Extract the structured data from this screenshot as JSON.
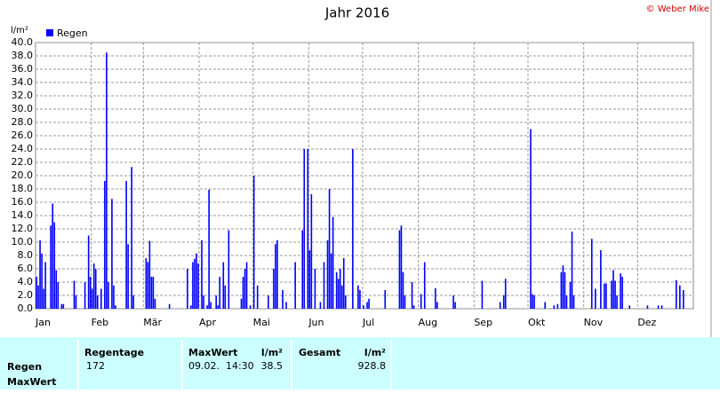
{
  "chart_data": {
    "type": "bar",
    "title": "Jahr 2016",
    "credit": "© Weber Mike",
    "y_unit": "l/m²",
    "categories": [
      "Jan",
      null,
      null,
      null,
      null,
      null,
      null,
      null,
      null,
      null,
      null,
      null,
      null,
      null,
      null,
      null,
      null,
      null,
      null,
      null,
      null,
      null,
      null,
      null,
      null,
      null,
      null,
      null,
      null,
      null,
      null,
      "Feb",
      null,
      null,
      null,
      null,
      null,
      null,
      null,
      null,
      null,
      null,
      null,
      null,
      null,
      null,
      null,
      null,
      null,
      null,
      null,
      null,
      null,
      null,
      null,
      null,
      null,
      null,
      null,
      null,
      "Mär",
      null,
      null,
      null,
      null,
      null,
      null,
      null,
      null,
      null,
      null,
      null,
      null,
      null,
      null,
      null,
      null,
      null,
      null,
      null,
      null,
      null,
      null,
      null,
      null,
      null,
      null,
      null,
      null,
      null,
      null,
      "Apr",
      null,
      null,
      null,
      null,
      null,
      null,
      null,
      null,
      null,
      null,
      null,
      null,
      null,
      null,
      null,
      null,
      null,
      null,
      null,
      null,
      null,
      null,
      null,
      null,
      null,
      null,
      null,
      null,
      null,
      "Mai",
      null,
      null,
      null,
      null,
      null,
      null,
      null,
      null,
      null,
      null,
      null,
      null,
      null,
      null,
      null,
      null,
      null,
      null,
      null,
      null,
      null,
      null,
      null,
      null,
      null,
      null,
      null,
      null,
      null,
      null,
      "Jun",
      null,
      null,
      null,
      null,
      null,
      null,
      null,
      null,
      null,
      null,
      null,
      null,
      null,
      null,
      null,
      null,
      null,
      null,
      null,
      null,
      null,
      null,
      null,
      null,
      null,
      null,
      null,
      null,
      null,
      "Jul",
      null,
      null,
      null,
      null,
      null,
      null,
      null,
      null,
      null,
      null,
      null,
      null,
      null,
      null,
      null,
      null,
      null,
      null,
      null,
      null,
      null,
      null,
      null,
      null,
      null,
      null,
      null,
      null,
      null,
      null,
      "Aug",
      null,
      null,
      null,
      null,
      null,
      null,
      null,
      null,
      null,
      null,
      null,
      null,
      null,
      null,
      null,
      null,
      null,
      null,
      null,
      null,
      null,
      null,
      null,
      null,
      null,
      null,
      null,
      null,
      null,
      null,
      "Sep",
      null,
      null,
      null,
      null,
      null,
      null,
      null,
      null,
      null,
      null,
      null,
      null,
      null,
      null,
      null,
      null,
      null,
      null,
      null,
      null,
      null,
      null,
      null,
      null,
      null,
      null,
      null,
      null,
      null,
      "Okt",
      null,
      null,
      null,
      null,
      null,
      null,
      null,
      null,
      null,
      null,
      null,
      null,
      null,
      null,
      null,
      null,
      null,
      null,
      null,
      null,
      null,
      null,
      null,
      null,
      null,
      null,
      null,
      null,
      null,
      null,
      "Nov",
      null,
      null,
      null,
      null,
      null,
      null,
      null,
      null,
      null,
      null,
      null,
      null,
      null,
      null,
      null,
      null,
      null,
      null,
      null,
      null,
      null,
      null,
      null,
      null,
      null,
      null,
      null,
      null,
      null,
      "Dez",
      null,
      null,
      null,
      null,
      null,
      null,
      null,
      null,
      null,
      null,
      null,
      null,
      null,
      null,
      null,
      null,
      null,
      null,
      null,
      null,
      null,
      null,
      null,
      null,
      null,
      null,
      null,
      null,
      null,
      null
    ],
    "series": [
      {
        "name": "Regen",
        "color": "#0000ff",
        "values": [
          4.8,
          3.5,
          10.3,
          8.3,
          3.0,
          7.0,
          0,
          0,
          12.5,
          15.8,
          13,
          5.8,
          4,
          0,
          0.7,
          0.7,
          0,
          0,
          0,
          0,
          0,
          4.2,
          2,
          0,
          0,
          0,
          0,
          4,
          0,
          11,
          4.8,
          3,
          6.8,
          6,
          2,
          0,
          3,
          0,
          19.2,
          38.5,
          4,
          0,
          16.5,
          3.5,
          0.5,
          0,
          0,
          0,
          0,
          0,
          19.2,
          9.7,
          0,
          21.3,
          2,
          0,
          0,
          0,
          0,
          0,
          0,
          7.6,
          7,
          10.2,
          4.8,
          4.8,
          1.5,
          0,
          0,
          0,
          0,
          0,
          0,
          0,
          0.7,
          0,
          0,
          0,
          0,
          0,
          0,
          0,
          0,
          0,
          6,
          0,
          0.5,
          7,
          7.5,
          8.3,
          6.8,
          0,
          10.3,
          2,
          0,
          0.5,
          17.9,
          1,
          0,
          0,
          2,
          0.5,
          4.8,
          0,
          7,
          3.5,
          0,
          11.8,
          0,
          0,
          0,
          0,
          0,
          0,
          1.5,
          4.8,
          6,
          7,
          0,
          0.5,
          0,
          20,
          0,
          3.5,
          0,
          0,
          0,
          0,
          0,
          2,
          0,
          0,
          6,
          9.7,
          10.3,
          0,
          0,
          2.8,
          0,
          1,
          0,
          0,
          0,
          0,
          7,
          0,
          0,
          0,
          11.8,
          24,
          0,
          24,
          8.8,
          17.2,
          0,
          6,
          0,
          0,
          1,
          0,
          7,
          0,
          10.3,
          18,
          8.3,
          13.8,
          0,
          5.5,
          4.5,
          6,
          3.5,
          7.6,
          2,
          0,
          0,
          0,
          24,
          0,
          0,
          3.5,
          2.8,
          0,
          0.5,
          0,
          1,
          1.5,
          0,
          0,
          0,
          0,
          0,
          0,
          0,
          0,
          2.8,
          0,
          0,
          0,
          0,
          0,
          0,
          0,
          11.8,
          12.5,
          5.5,
          2,
          0,
          0,
          0,
          4,
          0.5,
          0,
          0,
          0,
          2.2,
          0,
          7,
          0,
          0,
          0,
          0,
          0,
          3.1,
          1,
          0,
          0,
          0,
          0,
          0,
          0,
          0,
          0,
          2,
          1,
          0,
          0,
          0,
          0,
          0,
          0,
          0,
          0,
          0,
          0,
          0,
          0,
          0,
          0,
          4.2,
          0,
          0,
          0,
          0,
          0,
          0,
          0,
          0,
          0,
          1,
          0,
          2,
          4.5,
          0,
          0,
          0,
          0,
          0,
          0,
          0,
          0,
          0,
          0,
          0,
          0,
          0,
          27,
          2.2,
          2,
          0,
          0,
          0,
          0,
          0,
          1,
          0,
          0,
          0,
          0,
          0.5,
          0,
          0.7,
          0,
          5.5,
          6.5,
          5.5,
          2,
          0,
          4,
          11.6,
          2,
          0,
          0,
          0,
          0,
          0,
          0,
          0,
          0,
          0,
          10.5,
          0,
          3,
          0,
          0,
          8.8,
          0,
          3.8,
          3.8,
          0,
          0,
          4.2,
          5.8,
          4.2,
          2,
          0,
          5.3,
          4.8,
          0,
          0,
          0,
          0.5,
          0,
          0,
          0,
          0,
          0,
          0,
          0,
          0,
          0,
          0.5,
          0,
          0,
          0,
          0,
          0,
          0.5,
          0,
          0.5,
          0,
          0,
          0,
          0,
          0,
          0,
          0,
          4.3,
          0,
          3.5,
          0,
          2.8,
          0,
          0,
          0,
          0,
          0
        ]
      }
    ],
    "ylim": [
      0,
      40
    ],
    "yticks": [
      {
        "value": 0,
        "label": "0.0"
      },
      {
        "value": 2,
        "label": "2.0"
      },
      {
        "value": 4,
        "label": "4.0"
      },
      {
        "value": 6,
        "label": "6.0"
      },
      {
        "value": 8,
        "label": "8.0"
      },
      {
        "value": 10,
        "label": "10.0"
      },
      {
        "value": 12,
        "label": "12.0"
      },
      {
        "value": 14,
        "label": "14.0"
      },
      {
        "value": 16,
        "label": "16.0"
      },
      {
        "value": 18,
        "label": "18.0"
      },
      {
        "value": 20,
        "label": "20.0"
      },
      {
        "value": 22,
        "label": "22.0"
      },
      {
        "value": 24,
        "label": "24.0"
      },
      {
        "value": 26,
        "label": "26.0"
      },
      {
        "value": 28,
        "label": "28.0"
      },
      {
        "value": 30,
        "label": "30.0"
      },
      {
        "value": 32,
        "label": "32.0"
      },
      {
        "value": 34,
        "label": "34.0"
      },
      {
        "value": 36,
        "label": "36.0"
      },
      {
        "value": 38,
        "label": "38.0"
      },
      {
        "value": 40,
        "label": "40.0"
      }
    ],
    "grid": true,
    "legend": "top-left"
  },
  "table": {
    "headers": [
      "Regentage",
      "MaxWert",
      "l/m²",
      "Gesamt",
      "l/m²"
    ],
    "row_labels": [
      "Regen",
      "MaxWert"
    ],
    "rows": [
      [
        "172",
        "09.02.  14:30",
        "38.5",
        "928.8"
      ]
    ]
  }
}
